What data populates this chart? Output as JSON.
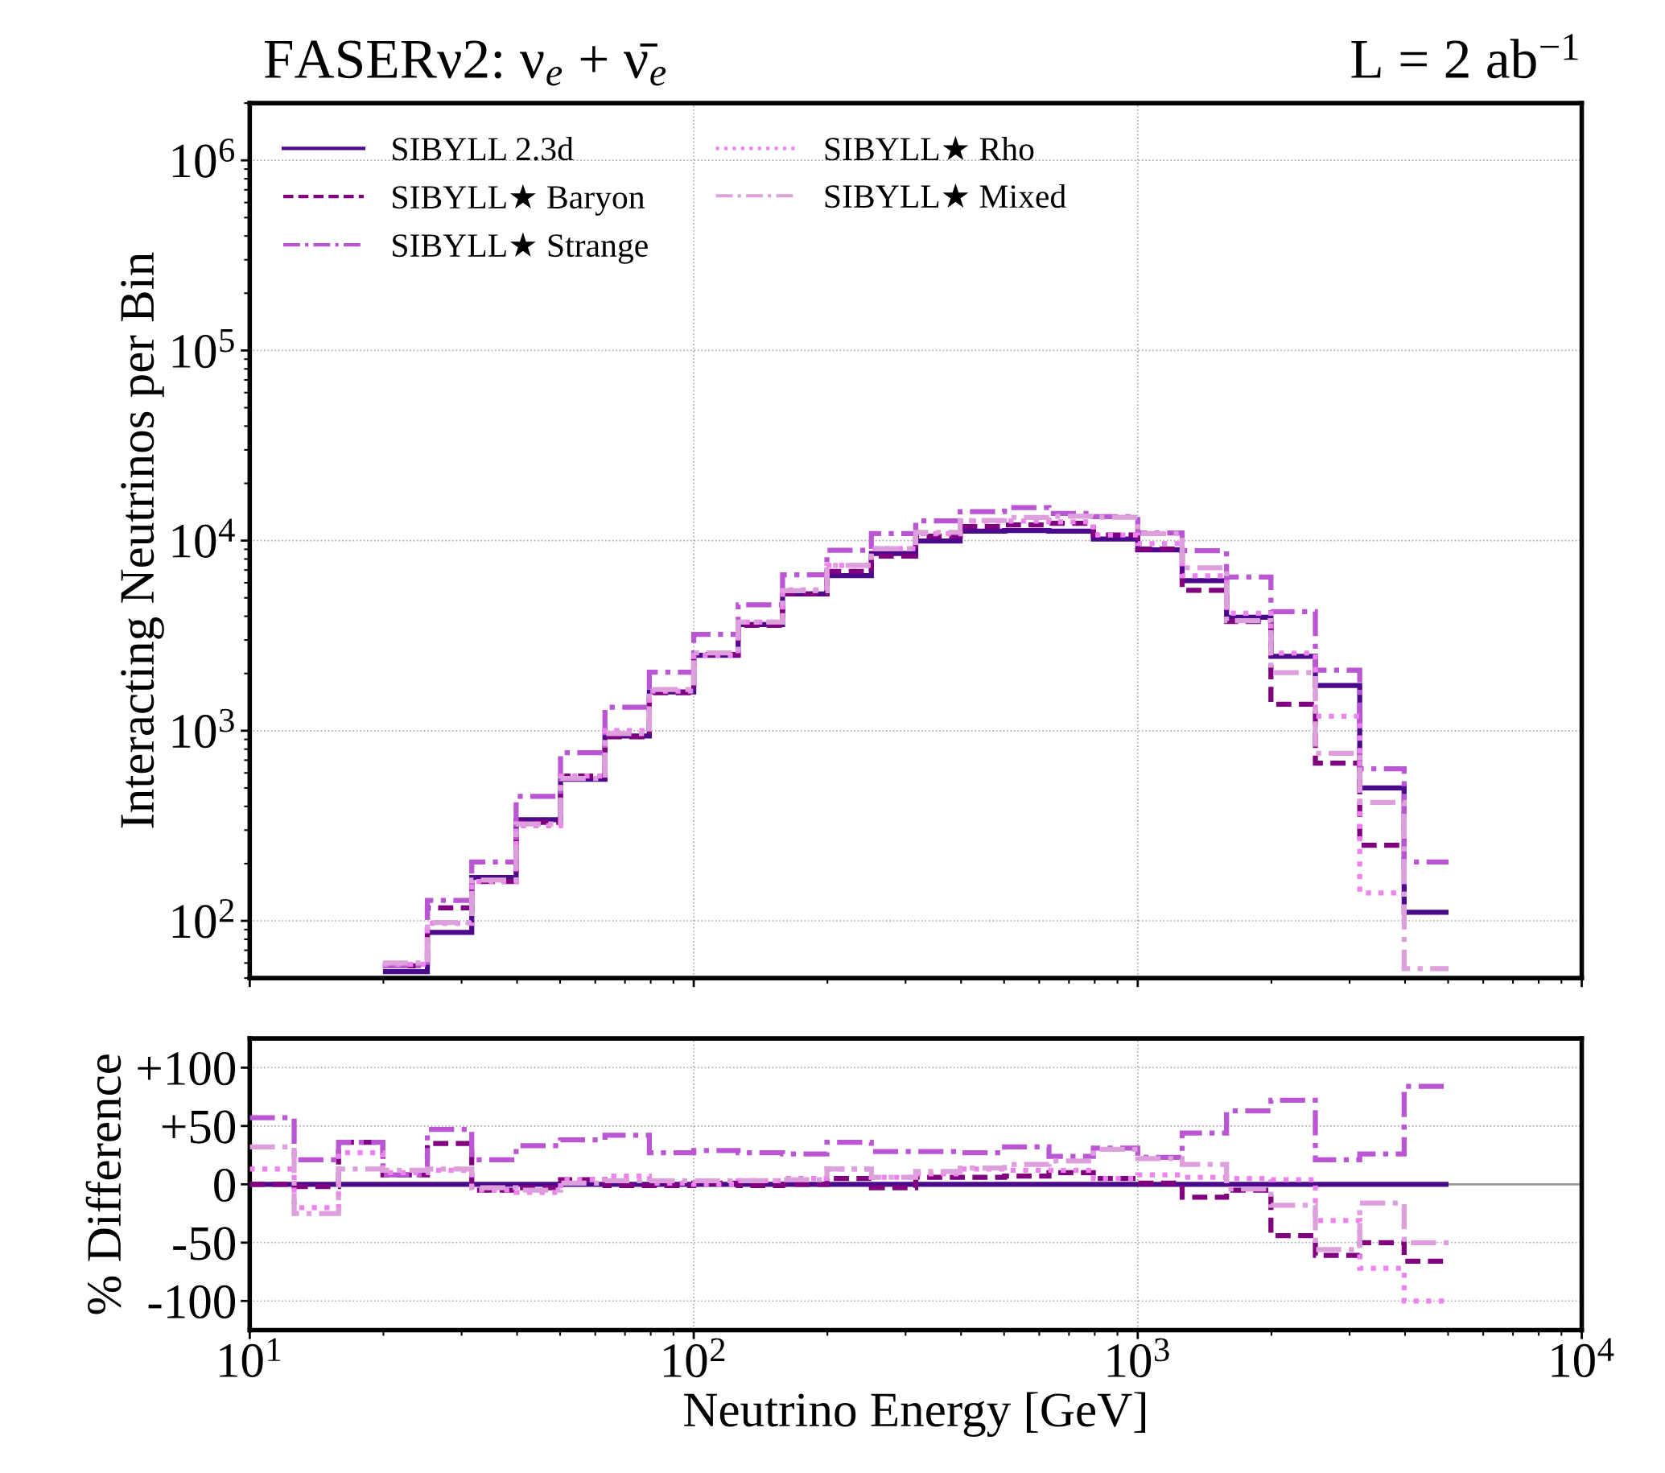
{
  "chart_data": [
    {
      "type": "histogram",
      "title": "FASERν2: ν$_{e}$ + ν̄$_{e}$",
      "annotations": [
        "L = 2 ab$^{−1}$"
      ],
      "ylabel": "Interacting Neutrinos per Bin",
      "log": "xy",
      "xlim": [
        10,
        10000
      ],
      "xticks": [
        10,
        100,
        1000,
        10000
      ],
      "ylim": [
        50,
        2000000
      ],
      "yticks": [
        {
          "value": 100,
          "label": "10$^{2}$"
        },
        {
          "value": 1000,
          "label": "10$^{3}$"
        },
        {
          "value": 10000,
          "label": "10$^{4}$"
        },
        {
          "value": 100000,
          "label": "10$^{5}$"
        },
        {
          "value": 1000000,
          "label": "10$^{6}$"
        }
      ],
      "tick_labels": "y",
      "grid": true,
      "legend": "top left",
      "bins": [
        19.95,
        25.12,
        31.62,
        39.81,
        50.12,
        63.1,
        79.43,
        100,
        125.9,
        158.5,
        199.5,
        251.2,
        316.2,
        398.1,
        501.2,
        631,
        794.3,
        1000,
        1259,
        1585,
        1995,
        2512,
        3162,
        3981,
        5012
      ],
      "series": [
        {
          "name": "SIBYLL 2.3d",
          "color": "#4b0a8c",
          "line_style": "solid",
          "values": [
            54,
            87,
            169,
            340,
            555,
            937,
            1600,
            2490,
            3620,
            5240,
            6550,
            8550,
            9950,
            11200,
            11300,
            11200,
            10200,
            8930,
            6150,
            3950,
            2460,
            1730,
            500,
            111
          ]
        },
        {
          "name": "SIBYLL★ Baryon",
          "color": "#800080",
          "line_style": "dashed",
          "bins": [
            19.95,
            25.12,
            31.62,
            39.81,
            50.12,
            63.1,
            79.43,
            100,
            125.9,
            158.5,
            199.5,
            251.2,
            316.2,
            398.1,
            501.2,
            631,
            794.3,
            1000,
            1259,
            1585,
            1995,
            2512,
            3162,
            3981
          ],
          "values": [
            58,
            117,
            161,
            330,
            577,
            928,
            1584,
            2515,
            3584,
            5240,
            6880,
            8290,
            10550,
            11870,
            12090,
            12320,
            10710,
            9020,
            5470,
            3750,
            1380,
            675,
            250
          ]
        },
        {
          "name": "SIBYLL★ Strange",
          "color": "#ba55d3",
          "line_style": "dashdot",
          "values": [
            58,
            128,
            204,
            452,
            766,
            1330,
            2030,
            3210,
            4600,
            6600,
            8900,
            10900,
            12700,
            14200,
            14900,
            13900,
            13360,
            10980,
            8860,
            6440,
            4230,
            2080,
            630,
            204
          ]
        },
        {
          "name": "SIBYLL★ Rho",
          "color": "#ee82ee",
          "line_style": "dotted",
          "bins": [
            19.95,
            25.12,
            31.62,
            39.81,
            50.12,
            63.1,
            79.43,
            100,
            125.9,
            158.5,
            199.5,
            251.2,
            316.2,
            398.1,
            501.2,
            631,
            794.3,
            1000,
            1259,
            1585,
            1995,
            2512,
            3162,
            3981
          ],
          "values": [
            59,
            97,
            161,
            316,
            577,
            1003,
            1616,
            2490,
            3730,
            5500,
            7400,
            9060,
            10850,
            12660,
            12660,
            12540,
            10710,
            9640,
            6520,
            4150,
            2560,
            1190,
            140
          ]
        },
        {
          "name": "SIBYLL★ Mixed",
          "color": "#dda0dd",
          "line_style": "dashdot",
          "values": [
            60,
            98,
            164,
            323,
            561,
            965,
            1648,
            2565,
            3730,
            5450,
            7400,
            9060,
            11040,
            12770,
            13220,
            13440,
            13260,
            10890,
            7200,
            3790,
            2020,
            760,
            420,
            56
          ]
        }
      ]
    },
    {
      "type": "histogram",
      "xlabel": "Neutrino Energy [GeV]",
      "ylabel": "% Difference",
      "log": "x",
      "xlim": [
        10,
        10000
      ],
      "xticks": [
        {
          "value": 10,
          "label": "10$^{1}$"
        },
        {
          "value": 100,
          "label": "10$^{2}$"
        },
        {
          "value": 1000,
          "label": "10$^{3}$"
        },
        {
          "value": 10000,
          "label": "10$^{4}$"
        }
      ],
      "ylim": [
        -125,
        125
      ],
      "yticks": [
        {
          "value": 100,
          "label": "+100"
        },
        {
          "value": 50,
          "label": "+50"
        },
        0,
        {
          "value": -50,
          "label": "-50"
        },
        {
          "value": -100,
          "label": "-100"
        }
      ],
      "grid": true,
      "ref_lines": [
        {
          "axis": "y",
          "value": 0,
          "color": "#999999"
        }
      ],
      "bins": [
        10,
        12.59,
        15.85,
        19.95,
        25.12,
        31.62,
        39.81,
        50.12,
        63.1,
        79.43,
        100,
        125.9,
        158.5,
        199.5,
        251.2,
        316.2,
        398.1,
        501.2,
        631,
        794.3,
        1000,
        1259,
        1585,
        1995,
        2512,
        3162,
        3981,
        5012
      ],
      "series": [
        {
          "color": "#4b0a8c",
          "line_style": "solid",
          "values": [
            0,
            0,
            0,
            0,
            0,
            0,
            0,
            0,
            0,
            0,
            0,
            0,
            0,
            0,
            0,
            0,
            0,
            0,
            0,
            0,
            0,
            0,
            0,
            0,
            0,
            0,
            0
          ]
        },
        {
          "color": "#800080",
          "line_style": "dashed",
          "values": [
            0,
            -2,
            36,
            8,
            35,
            -5,
            -3,
            4,
            -1,
            -1,
            1,
            -1,
            0,
            5,
            -3,
            6,
            6,
            7,
            10,
            5,
            1,
            -11,
            -5,
            -44,
            -61,
            -50,
            -66
          ]
        },
        {
          "color": "#ba55d3",
          "line_style": "dashdot",
          "values": [
            57,
            21,
            36,
            8,
            47,
            21,
            33,
            38,
            42,
            27,
            29,
            27,
            26,
            36,
            28,
            28,
            27,
            32,
            24,
            31,
            23,
            44,
            63,
            72,
            21,
            26,
            84
          ]
        },
        {
          "color": "#ee82ee",
          "line_style": "dotted",
          "values": [
            13,
            -20,
            27,
            10,
            12,
            -5,
            -7,
            4,
            7,
            1,
            0,
            3,
            5,
            13,
            6,
            9,
            13,
            12,
            12,
            5,
            8,
            6,
            5,
            4,
            -31,
            -72,
            -100
          ]
        },
        {
          "color": "#dda0dd",
          "line_style": "dashdot",
          "values": [
            32,
            -25,
            13,
            12,
            13,
            -3,
            -5,
            1,
            3,
            3,
            3,
            3,
            4,
            13,
            6,
            11,
            14,
            17,
            20,
            30,
            22,
            17,
            -4,
            -18,
            -56,
            -16,
            -50
          ]
        }
      ]
    }
  ]
}
